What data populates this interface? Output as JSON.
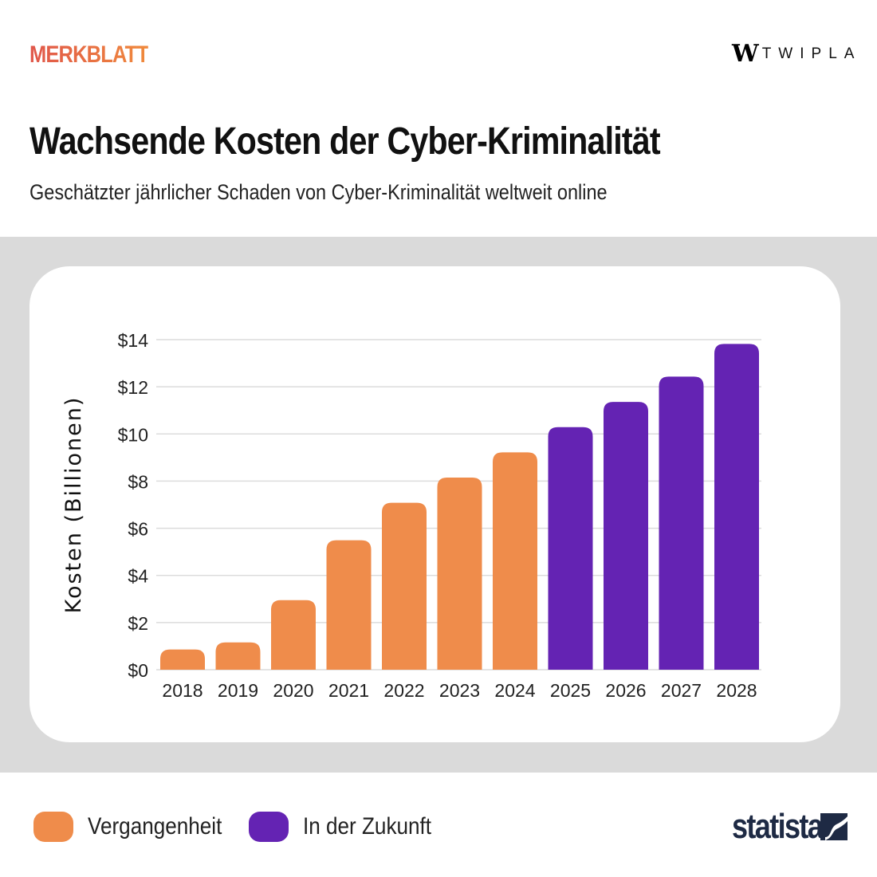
{
  "header": {
    "brand_left": "MERKBLATT",
    "brand_right": "TWIPLA",
    "brand_right_mark": "W"
  },
  "title": "Wachsende Kosten der Cyber-Kriminalität",
  "subtitle": "Geschätzter jährlicher Schaden von Cyber-Kriminalität weltweit online",
  "legend": [
    {
      "label": "Vergangenheit",
      "color": "#ef8c4b"
    },
    {
      "label": "In der Zukunft",
      "color": "#6423b3"
    }
  ],
  "footer": {
    "logo": "statista"
  },
  "chart_data": {
    "type": "bar",
    "ylabel": "Kosten (Billionen)",
    "ylim": [
      0,
      14
    ],
    "yticks": [
      0,
      2,
      4,
      6,
      8,
      10,
      12,
      14
    ],
    "ytick_labels": [
      "$0",
      "$2",
      "$4",
      "$6",
      "$8",
      "$10",
      "$12",
      "$14"
    ],
    "grid": true,
    "legend_position": "bottom",
    "categories": [
      "2018",
      "2019",
      "2020",
      "2021",
      "2022",
      "2023",
      "2024",
      "2025",
      "2026",
      "2027",
      "2028"
    ],
    "values": [
      0.86,
      1.16,
      2.95,
      5.49,
      7.08,
      8.15,
      9.22,
      10.29,
      11.36,
      12.43,
      13.82
    ],
    "groups": [
      "past",
      "past",
      "past",
      "past",
      "past",
      "past",
      "past",
      "future",
      "future",
      "future",
      "future"
    ],
    "colors": {
      "past": "#ef8c4b",
      "future": "#6423b3"
    }
  }
}
